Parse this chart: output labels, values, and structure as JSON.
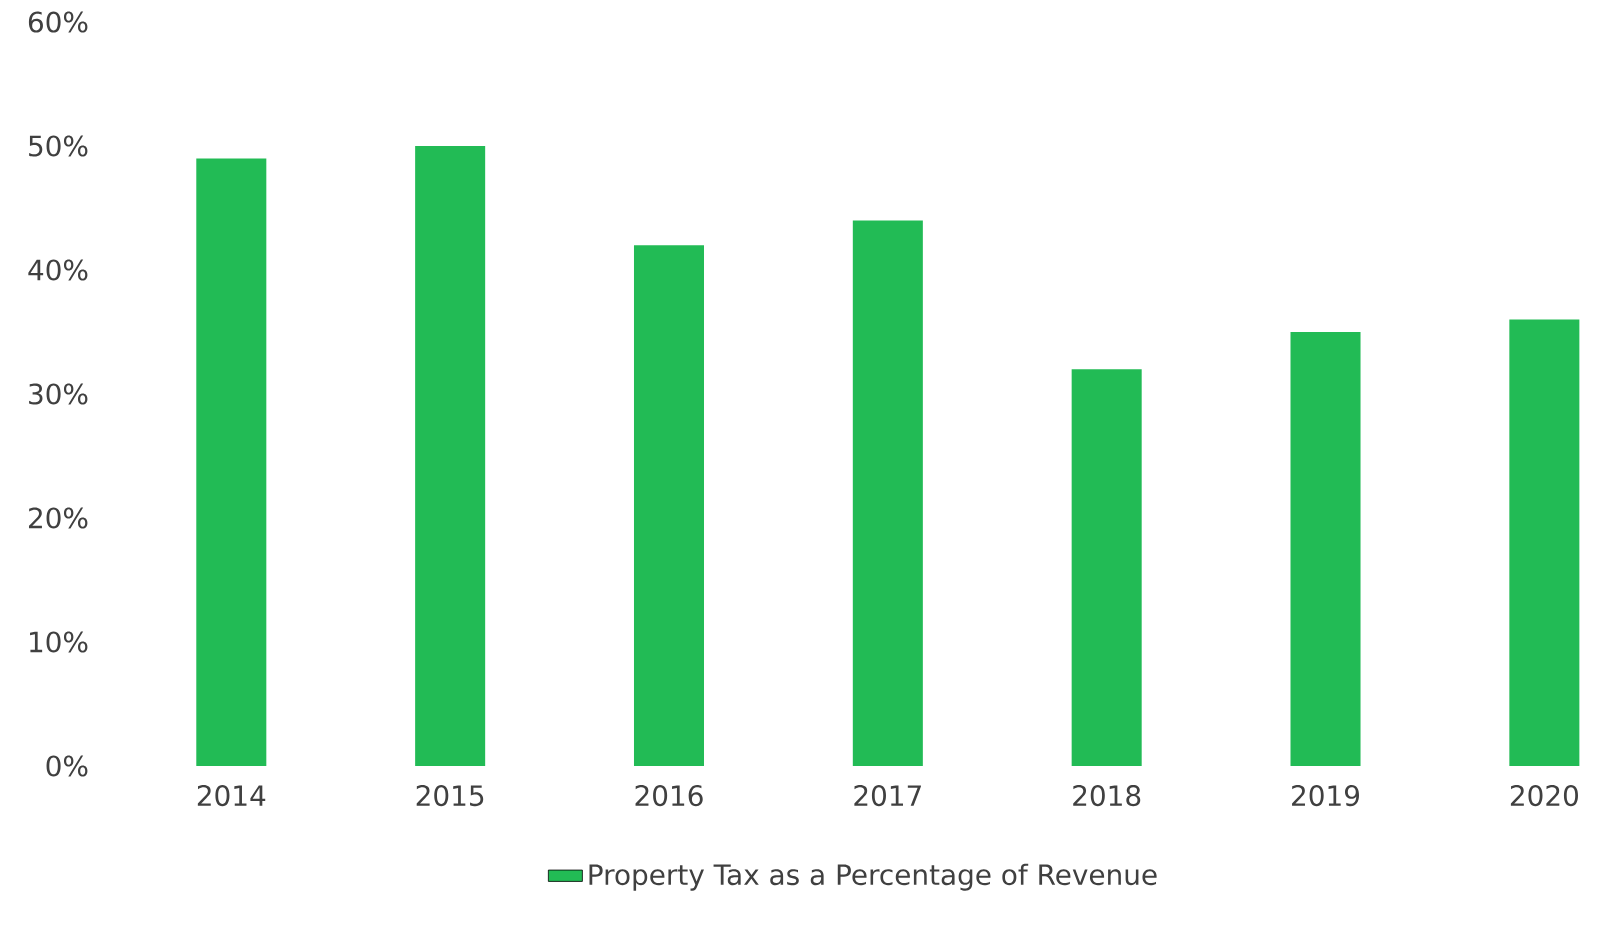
{
  "chart_data": {
    "type": "bar",
    "categories": [
      "2014",
      "2015",
      "2016",
      "2017",
      "2018",
      "2019",
      "2020"
    ],
    "series": [
      {
        "name": "Property Tax as a Percentage of Revenue",
        "color": "#22bb55",
        "values": [
          49,
          50,
          42,
          44,
          32,
          35,
          36
        ]
      }
    ],
    "ylim": [
      0,
      60
    ],
    "yticks": [
      {
        "value": 0,
        "label": "0%"
      },
      {
        "value": 10,
        "label": "10%"
      },
      {
        "value": 20,
        "label": "20%"
      },
      {
        "value": 30,
        "label": "30%"
      },
      {
        "value": 40,
        "label": "40%"
      },
      {
        "value": 50,
        "label": "50%"
      },
      {
        "value": 60,
        "label": "60%"
      }
    ],
    "legend": "bottom"
  }
}
